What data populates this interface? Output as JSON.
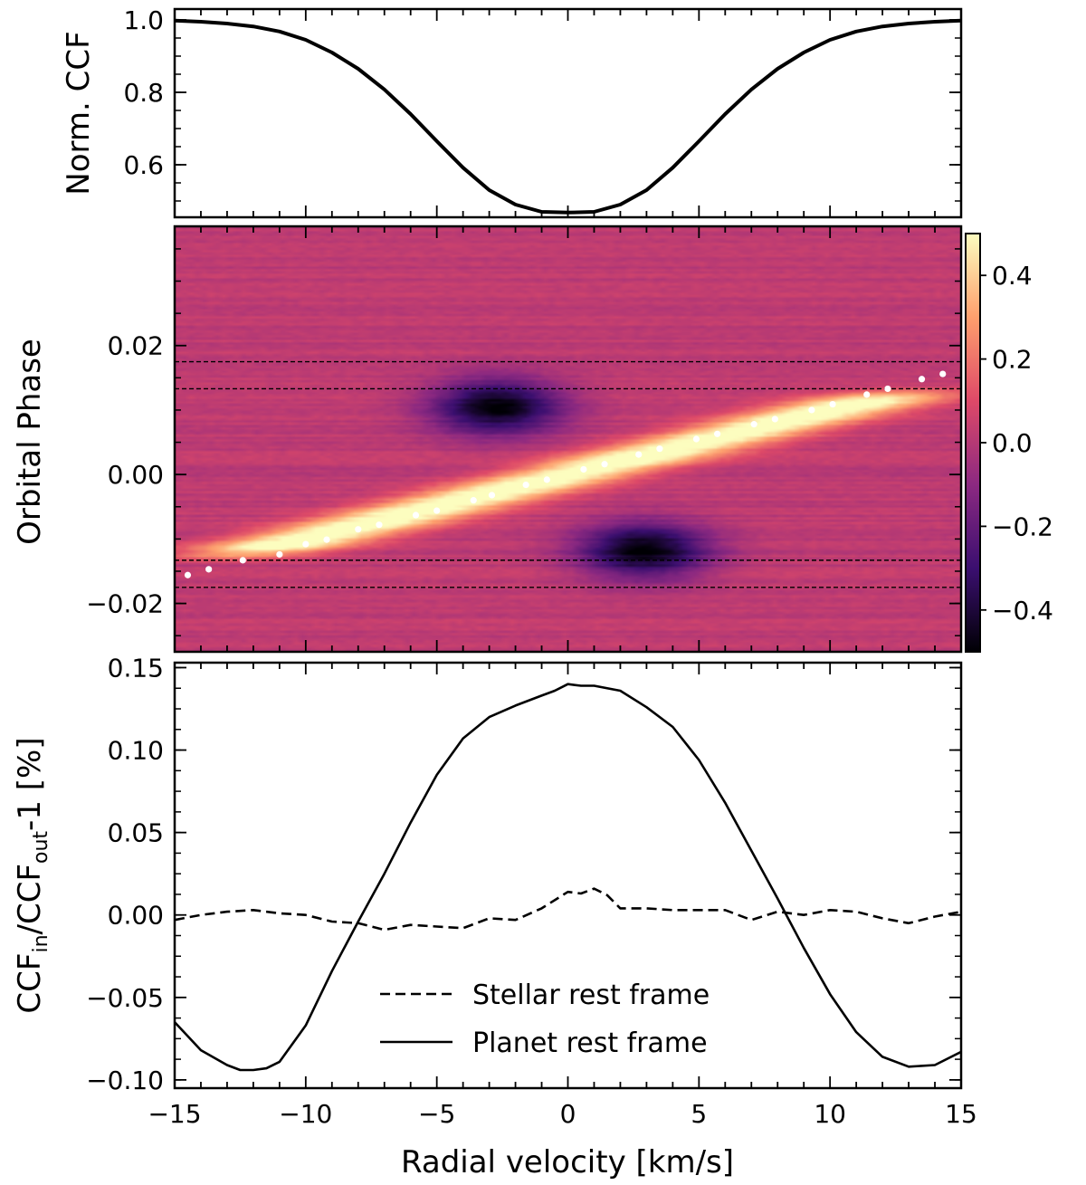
{
  "chart_data": [
    {
      "type": "line",
      "panel": "top",
      "title": "",
      "xlabel": "",
      "ylabel": "Norm. CCF",
      "xlim": [
        -15,
        15
      ],
      "ylim": [
        0.455,
        1.03
      ],
      "yticks": [
        0.6,
        0.8,
        1.0
      ],
      "ytick_labels": [
        "0.6",
        "0.8",
        "1.0"
      ],
      "series": [
        {
          "name": "Stellar CCF",
          "style": "solid",
          "x": [
            -15,
            -14,
            -13,
            -12,
            -11,
            -10,
            -9,
            -8,
            -7,
            -6,
            -5,
            -4,
            -3,
            -2,
            -1,
            0,
            1,
            2,
            3,
            4,
            5,
            6,
            7,
            8,
            9,
            10,
            11,
            12,
            13,
            14,
            15
          ],
          "y": [
            0.998,
            0.995,
            0.99,
            0.982,
            0.968,
            0.945,
            0.91,
            0.865,
            0.808,
            0.74,
            0.665,
            0.592,
            0.53,
            0.49,
            0.47,
            0.468,
            0.47,
            0.49,
            0.53,
            0.592,
            0.665,
            0.74,
            0.808,
            0.865,
            0.91,
            0.945,
            0.968,
            0.982,
            0.99,
            0.995,
            0.998
          ]
        }
      ]
    },
    {
      "type": "heatmap",
      "panel": "middle",
      "xlabel": "",
      "ylabel": "Orbital Phase",
      "xlim": [
        -15,
        15
      ],
      "ylim": [
        -0.0275,
        0.0385
      ],
      "yticks": [
        -0.02,
        0.0,
        0.02
      ],
      "ytick_labels": [
        "−0.02",
        "0.00",
        "0.02"
      ],
      "colorbar": {
        "range": [
          -0.5,
          0.5
        ],
        "ticks": [
          -0.4,
          -0.2,
          0.0,
          0.2,
          0.4
        ],
        "tick_labels": [
          "−0.4",
          "−0.2",
          "0.0",
          "0.2",
          "0.4"
        ],
        "colormap": "magma",
        "colors": [
          "#000004",
          "#3b0f70",
          "#8c2981",
          "#de4968",
          "#fe9f6d",
          "#fcfdbf"
        ]
      },
      "contact_lines": [
        -0.0175,
        -0.0133,
        0.0133,
        0.0175
      ],
      "planet_track_points": [
        {
          "x": -14.5,
          "y": -0.0156
        },
        {
          "x": -13.7,
          "y": -0.0147
        },
        {
          "x": -12.4,
          "y": -0.0133
        },
        {
          "x": -11.0,
          "y": -0.0124
        },
        {
          "x": -10.0,
          "y": -0.0108
        },
        {
          "x": -9.2,
          "y": -0.0101
        },
        {
          "x": -8.0,
          "y": -0.0085
        },
        {
          "x": -7.2,
          "y": -0.0078
        },
        {
          "x": -5.8,
          "y": -0.0063
        },
        {
          "x": -5.0,
          "y": -0.0056
        },
        {
          "x": -3.6,
          "y": -0.004
        },
        {
          "x": -2.9,
          "y": -0.0032
        },
        {
          "x": -1.6,
          "y": -0.0016
        },
        {
          "x": -0.8,
          "y": -0.0008
        },
        {
          "x": 0.6,
          "y": 0.0008
        },
        {
          "x": 1.4,
          "y": 0.0016
        },
        {
          "x": 2.7,
          "y": 0.0031
        },
        {
          "x": 3.5,
          "y": 0.004
        },
        {
          "x": 4.9,
          "y": 0.0055
        },
        {
          "x": 5.7,
          "y": 0.0063
        },
        {
          "x": 7.1,
          "y": 0.0078
        },
        {
          "x": 7.9,
          "y": 0.0086
        },
        {
          "x": 9.3,
          "y": 0.01
        },
        {
          "x": 10.1,
          "y": 0.0109
        },
        {
          "x": 11.4,
          "y": 0.0124
        },
        {
          "x": 12.2,
          "y": 0.0133
        },
        {
          "x": 13.5,
          "y": 0.0148
        },
        {
          "x": 14.3,
          "y": 0.0156
        }
      ],
      "features": [
        {
          "name": "planet signal",
          "amplitude": 0.55
        },
        {
          "name": "dark blob upper",
          "x": -2.7,
          "y": 0.0105,
          "amplitude": -0.52
        },
        {
          "name": "dark blob lower",
          "x": 2.9,
          "y": -0.0118,
          "amplitude": -0.52
        }
      ]
    },
    {
      "type": "line",
      "panel": "bottom",
      "xlabel": "Radial velocity [km/s]",
      "ylabel": "CCF_in/CCF_out-1 [%]",
      "ylabel_parts": {
        "a": "CCF",
        "sub_a": "in",
        "b": "/CCF",
        "sub_b": "out",
        "c": "-1 [%]"
      },
      "xlim": [
        -15,
        15
      ],
      "ylim": [
        -0.105,
        0.153
      ],
      "xticks": [
        -15,
        -10,
        -5,
        0,
        5,
        10,
        15
      ],
      "xtick_labels": [
        "−15",
        "−10",
        "−5",
        "0",
        "5",
        "10",
        "15"
      ],
      "yticks": [
        -0.1,
        -0.05,
        0.0,
        0.05,
        0.1,
        0.15
      ],
      "ytick_labels": [
        "−0.10",
        "−0.05",
        "0.00",
        "0.05",
        "0.10",
        "0.15"
      ],
      "legend_position": "lower-center",
      "series": [
        {
          "name": "Stellar rest frame",
          "style": "dashed",
          "x": [
            -15,
            -14,
            -13,
            -12,
            -11,
            -10,
            -9,
            -8,
            -7,
            -6,
            -5,
            -4,
            -3,
            -2,
            -1,
            0,
            0.5,
            1,
            1.5,
            2,
            3,
            4,
            5,
            6,
            7,
            8,
            9,
            10,
            11,
            12,
            13,
            14,
            15
          ],
          "y": [
            -0.003,
            0.0,
            0.002,
            0.003,
            0.001,
            0.0,
            -0.004,
            -0.005,
            -0.009,
            -0.006,
            -0.007,
            -0.008,
            -0.002,
            -0.003,
            0.004,
            0.014,
            0.013,
            0.016,
            0.012,
            0.004,
            0.004,
            0.003,
            0.003,
            0.003,
            -0.003,
            0.002,
            0.0,
            0.003,
            0.002,
            -0.002,
            -0.005,
            -0.001,
            0.002
          ]
        },
        {
          "name": "Planet rest frame",
          "style": "solid",
          "x": [
            -15,
            -14,
            -13,
            -12.5,
            -12,
            -11.5,
            -11,
            -10,
            -9,
            -8,
            -7,
            -6,
            -5,
            -4,
            -3,
            -2,
            -1,
            -0.5,
            0,
            0.5,
            1,
            2,
            3,
            4,
            5,
            6,
            7,
            8,
            9,
            10,
            11,
            12,
            13,
            14,
            15
          ],
          "y": [
            -0.065,
            -0.082,
            -0.091,
            -0.094,
            -0.094,
            -0.093,
            -0.089,
            -0.067,
            -0.034,
            -0.004,
            0.025,
            0.056,
            0.085,
            0.107,
            0.12,
            0.127,
            0.133,
            0.136,
            0.14,
            0.139,
            0.139,
            0.136,
            0.126,
            0.114,
            0.094,
            0.068,
            0.039,
            0.01,
            -0.02,
            -0.048,
            -0.071,
            -0.086,
            -0.092,
            -0.091,
            -0.083
          ]
        }
      ]
    }
  ]
}
